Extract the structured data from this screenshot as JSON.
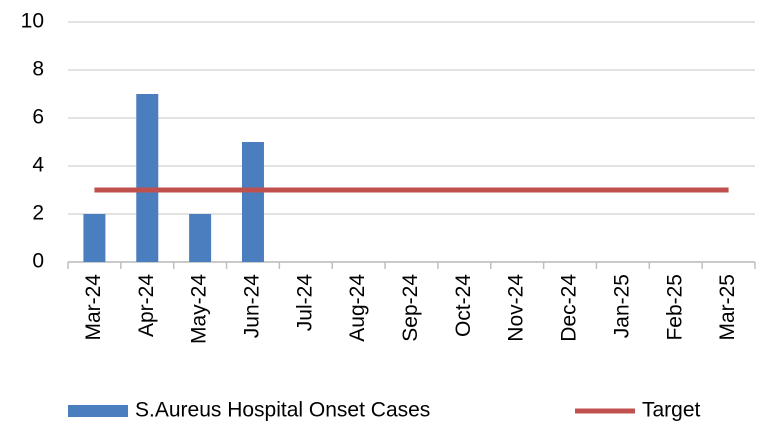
{
  "chart_data": {
    "type": "bar",
    "categories": [
      "Mar-24",
      "Apr-24",
      "May-24",
      "Jun-24",
      "Jul-24",
      "Aug-24",
      "Sep-24",
      "Oct-24",
      "Nov-24",
      "Dec-24",
      "Jan-25",
      "Feb-25",
      "Mar-25"
    ],
    "series": [
      {
        "name": "S.Aureus Hospital Onset Cases",
        "color": "#4a7ebf",
        "type": "bar",
        "values": [
          2,
          7,
          2,
          5,
          null,
          null,
          null,
          null,
          null,
          null,
          null,
          null,
          null
        ]
      },
      {
        "name": "Target",
        "color": "#c0504d",
        "type": "line",
        "values": [
          3,
          3,
          3,
          3,
          3,
          3,
          3,
          3,
          3,
          3,
          3,
          3,
          3
        ]
      }
    ],
    "ylim": [
      0,
      10
    ],
    "yticks": [
      0,
      2,
      4,
      6,
      8,
      10
    ],
    "grid": true,
    "legend": "bottom"
  }
}
